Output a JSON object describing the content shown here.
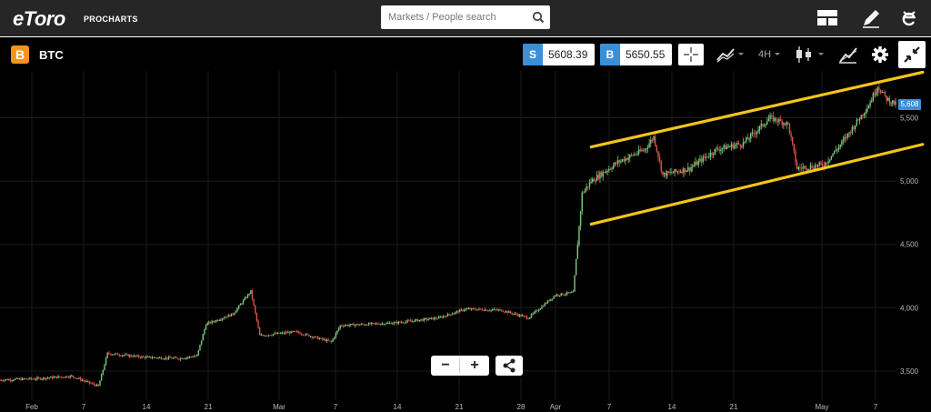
{
  "header": {
    "logo_text": "eToro",
    "logo_sub": "PROCHARTS",
    "search": {
      "placeholder": "Markets / People search",
      "icon": "search-icon"
    },
    "icons": [
      "layout-icon",
      "pencil-icon",
      "etoro-e-icon"
    ]
  },
  "instrument": {
    "symbol_icon": "B",
    "symbol": "BTC",
    "sell": {
      "tag": "S",
      "value": "5608.39"
    },
    "buy": {
      "tag": "B",
      "value": "5650.55"
    },
    "timeframe": "4H",
    "current_price_label": "5,608"
  },
  "colors": {
    "accent_blue": "#3a8fd9",
    "btc_orange": "#f7931a",
    "channel_line": "#f5c518",
    "candle_up": "#7ec87e",
    "candle_down": "#d9534f"
  },
  "chart_data": {
    "type": "candlestick",
    "title": "",
    "xlabel": "",
    "ylabel": "",
    "x_ticks": [
      "Feb",
      "7",
      "14",
      "21",
      "Mar",
      "7",
      "14",
      "21",
      "28",
      "Apr",
      "7",
      "14",
      "21",
      "May",
      "7"
    ],
    "y_ticks": [
      "3,500",
      "4,000",
      "4,500",
      "5,000",
      "5,500"
    ],
    "ylim": [
      3270,
      5870
    ],
    "grid": true,
    "trend_lines": [
      {
        "from": {
          "x": "2019-04-02",
          "y": 5270
        },
        "to": {
          "x": "2019-05-08",
          "y": 5860
        }
      },
      {
        "from": {
          "x": "2019-04-02",
          "y": 4660
        },
        "to": {
          "x": "2019-05-08",
          "y": 5290
        }
      }
    ],
    "close_path": [
      {
        "date": "2019-01-27",
        "close": 3430
      },
      {
        "date": "2019-01-31",
        "close": 3440
      },
      {
        "date": "2019-02-04",
        "close": 3460
      },
      {
        "date": "2019-02-07",
        "close": 3380
      },
      {
        "date": "2019-02-08",
        "close": 3640
      },
      {
        "date": "2019-02-12",
        "close": 3610
      },
      {
        "date": "2019-02-16",
        "close": 3600
      },
      {
        "date": "2019-02-18",
        "close": 3620
      },
      {
        "date": "2019-02-19",
        "close": 3870
      },
      {
        "date": "2019-02-22",
        "close": 3950
      },
      {
        "date": "2019-02-24",
        "close": 4130
      },
      {
        "date": "2019-02-25",
        "close": 3780
      },
      {
        "date": "2019-03-01",
        "close": 3810
      },
      {
        "date": "2019-03-05",
        "close": 3730
      },
      {
        "date": "2019-03-06",
        "close": 3860
      },
      {
        "date": "2019-03-12",
        "close": 3880
      },
      {
        "date": "2019-03-17",
        "close": 3920
      },
      {
        "date": "2019-03-20",
        "close": 3990
      },
      {
        "date": "2019-03-24",
        "close": 3980
      },
      {
        "date": "2019-03-27",
        "close": 3920
      },
      {
        "date": "2019-03-30",
        "close": 4100
      },
      {
        "date": "2019-04-01",
        "close": 4120
      },
      {
        "date": "2019-04-02",
        "close": 4900
      },
      {
        "date": "2019-04-03",
        "close": 5000
      },
      {
        "date": "2019-04-06",
        "close": 5150
      },
      {
        "date": "2019-04-09",
        "close": 5250
      },
      {
        "date": "2019-04-10",
        "close": 5350
      },
      {
        "date": "2019-04-11",
        "close": 5050
      },
      {
        "date": "2019-04-14",
        "close": 5100
      },
      {
        "date": "2019-04-17",
        "close": 5250
      },
      {
        "date": "2019-04-20",
        "close": 5300
      },
      {
        "date": "2019-04-23",
        "close": 5500
      },
      {
        "date": "2019-04-25",
        "close": 5450
      },
      {
        "date": "2019-04-26",
        "close": 5100
      },
      {
        "date": "2019-04-29",
        "close": 5130
      },
      {
        "date": "2019-05-01",
        "close": 5300
      },
      {
        "date": "2019-05-04",
        "close": 5600
      },
      {
        "date": "2019-05-05",
        "close": 5750
      },
      {
        "date": "2019-05-06",
        "close": 5650
      },
      {
        "date": "2019-05-07",
        "close": 5608
      }
    ],
    "current_price": 5608
  }
}
